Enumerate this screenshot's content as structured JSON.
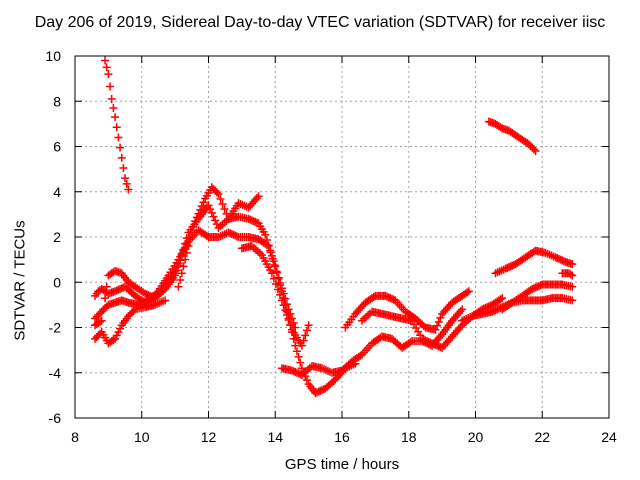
{
  "chart_data": {
    "type": "scatter",
    "title": "Day 206 of 2019, Sidereal Day-to-day VTEC variation (SDTVAR) for receiver iisc",
    "xlabel": "GPS time / hours",
    "ylabel": "SDTVAR / TECUs",
    "xlim": [
      8,
      24
    ],
    "ylim": [
      -6,
      10
    ],
    "x_ticks": [
      "8",
      "10",
      "12",
      "14",
      "16",
      "18",
      "20",
      "22",
      "24"
    ],
    "y_ticks": [
      "-6",
      "-4",
      "-2",
      "0",
      "2",
      "4",
      "6",
      "8",
      "10"
    ],
    "grid": true,
    "marker": "plus",
    "color": "#ff0000",
    "series": [
      {
        "name": "s1",
        "x": [
          8.9,
          9.0,
          9.1,
          9.2,
          9.3,
          9.4,
          9.5,
          9.6
        ],
        "y": [
          9.8,
          9.2,
          8.1,
          7.3,
          6.4,
          5.5,
          4.6,
          4.1
        ]
      },
      {
        "name": "s2",
        "x": [
          20.4,
          20.6,
          20.8,
          21.0,
          21.2,
          21.4,
          21.6,
          21.8
        ],
        "y": [
          7.1,
          7.0,
          6.8,
          6.7,
          6.5,
          6.3,
          6.1,
          5.8
        ]
      },
      {
        "name": "s3",
        "x": [
          8.6,
          8.7,
          8.8,
          9.0,
          9.2,
          9.5,
          9.8,
          10.1,
          10.4,
          10.7,
          11.0,
          11.3,
          11.6,
          11.9,
          12.1,
          12.3,
          12.6,
          12.9,
          13.2,
          13.5,
          13.7,
          14.0,
          14.2,
          14.4,
          14.6,
          14.8,
          15.0,
          15.2,
          15.5,
          15.8,
          16.1,
          16.4
        ],
        "y": [
          -0.6,
          -0.4,
          -0.3,
          -0.5,
          -0.4,
          -0.2,
          -0.6,
          -0.9,
          -0.7,
          -0.2,
          0.5,
          1.5,
          2.7,
          3.7,
          4.2,
          3.9,
          2.8,
          2.9,
          2.8,
          2.6,
          2.1,
          0.7,
          -0.4,
          -1.6,
          -2.8,
          -3.8,
          -4.5,
          -4.9,
          -4.7,
          -4.3,
          -3.8,
          -3.6
        ]
      },
      {
        "name": "s4",
        "x": [
          8.6,
          8.8,
          9.0,
          9.2,
          9.4,
          9.6,
          9.9,
          10.2,
          10.5,
          10.8,
          11.1,
          11.4,
          11.7,
          12.0,
          12.3,
          12.6,
          12.9,
          13.2,
          13.5,
          13.8,
          14.1,
          14.4,
          14.6
        ],
        "y": [
          -1.6,
          -1.3,
          -1.0,
          -0.9,
          -0.8,
          -0.9,
          -1.0,
          -0.8,
          -0.4,
          0.3,
          1.0,
          1.8,
          2.3,
          2.0,
          2.0,
          2.2,
          2.0,
          2.0,
          1.9,
          1.6,
          0.2,
          -1.2,
          -2.0
        ]
      },
      {
        "name": "s5",
        "x": [
          8.6,
          8.8,
          9.0,
          9.2,
          9.4,
          9.6,
          9.8,
          10.1,
          10.4,
          10.7
        ],
        "y": [
          -2.5,
          -2.2,
          -2.7,
          -2.5,
          -1.9,
          -1.5,
          -1.2,
          -1.1,
          -1.0,
          -0.8
        ]
      },
      {
        "name": "s6",
        "x": [
          8.6,
          8.8,
          9.0,
          9.2,
          9.4,
          9.6,
          9.8,
          10.1,
          10.4,
          10.7,
          11.0,
          11.2,
          11.4,
          11.7,
          12.0,
          12.3,
          12.6,
          12.9,
          13.2,
          13.5
        ],
        "y": [
          -1.9,
          -1.7,
          0.3,
          0.5,
          0.4,
          0.0,
          -0.2,
          -0.5,
          -0.7,
          -0.3,
          0.3,
          1.2,
          2.2,
          2.8,
          3.4,
          2.4,
          2.8,
          3.5,
          3.3,
          3.8
        ]
      },
      {
        "name": "s7",
        "x": [
          13.0,
          13.3,
          13.6,
          13.9,
          14.2,
          14.5,
          14.8,
          15.0
        ],
        "y": [
          1.5,
          1.6,
          1.2,
          0.4,
          -0.8,
          -2.1,
          -2.8,
          -1.9
        ]
      },
      {
        "name": "s8",
        "x": [
          14.2,
          14.5,
          14.8,
          15.1,
          15.4,
          15.7,
          16.0,
          16.3,
          16.6,
          16.9,
          17.2,
          17.5,
          17.8,
          18.1,
          18.4,
          18.7,
          19.0,
          19.3,
          19.6
        ],
        "y": [
          -3.8,
          -3.9,
          -4.1,
          -3.7,
          -3.8,
          -4.0,
          -3.9,
          -3.5,
          -3.2,
          -2.7,
          -2.4,
          -2.5,
          -2.9,
          -2.6,
          -2.6,
          -2.8,
          -2.3,
          -1.7,
          -1.2
        ]
      },
      {
        "name": "s9",
        "x": [
          16.1,
          16.4,
          16.7,
          17.0,
          17.3,
          17.6,
          17.9,
          18.2,
          18.5,
          18.8,
          19.0,
          19.3,
          19.6,
          19.8
        ],
        "y": [
          -2.0,
          -1.4,
          -0.9,
          -0.6,
          -0.6,
          -0.8,
          -1.3,
          -1.6,
          -2.0,
          -2.1,
          -1.4,
          -0.9,
          -0.6,
          -0.4
        ]
      },
      {
        "name": "s10",
        "x": [
          16.6,
          16.9,
          17.2,
          17.5,
          17.8,
          18.1,
          18.4,
          18.7,
          19.0,
          19.3,
          19.6,
          19.9,
          20.2,
          20.5,
          20.8
        ],
        "y": [
          -1.7,
          -1.3,
          -1.4,
          -1.5,
          -1.6,
          -1.7,
          -2.5,
          -2.7,
          -2.9,
          -2.4,
          -1.9,
          -1.5,
          -1.2,
          -1.0,
          -0.7
        ]
      },
      {
        "name": "s11",
        "x": [
          19.6,
          19.9,
          20.2,
          20.5,
          20.8,
          21.1,
          21.4,
          21.7,
          22.0,
          22.3,
          22.6,
          22.9
        ],
        "y": [
          -1.7,
          -1.5,
          -1.4,
          -1.3,
          -1.1,
          -0.9,
          -0.8,
          -0.8,
          -0.8,
          -0.7,
          -0.7,
          -0.8
        ]
      },
      {
        "name": "s12",
        "x": [
          20.8,
          21.1,
          21.4,
          21.7,
          22.0,
          22.3,
          22.6,
          22.9
        ],
        "y": [
          -1.2,
          -0.9,
          -0.6,
          -0.3,
          -0.1,
          -0.1,
          -0.1,
          -0.2
        ]
      },
      {
        "name": "s13",
        "x": [
          20.6,
          20.9,
          21.2,
          21.5,
          21.8,
          22.1,
          22.4,
          22.7,
          22.9
        ],
        "y": [
          0.4,
          0.6,
          0.8,
          1.1,
          1.4,
          1.3,
          1.1,
          0.9,
          0.8
        ]
      },
      {
        "name": "s14",
        "x": [
          22.6,
          22.8,
          22.9
        ],
        "y": [
          0.4,
          0.4,
          0.3
        ]
      },
      {
        "name": "s15",
        "x": [
          11.1,
          11.2,
          11.3,
          11.4
        ],
        "y": [
          -0.2,
          0.4,
          1.0,
          1.6
        ]
      }
    ]
  }
}
